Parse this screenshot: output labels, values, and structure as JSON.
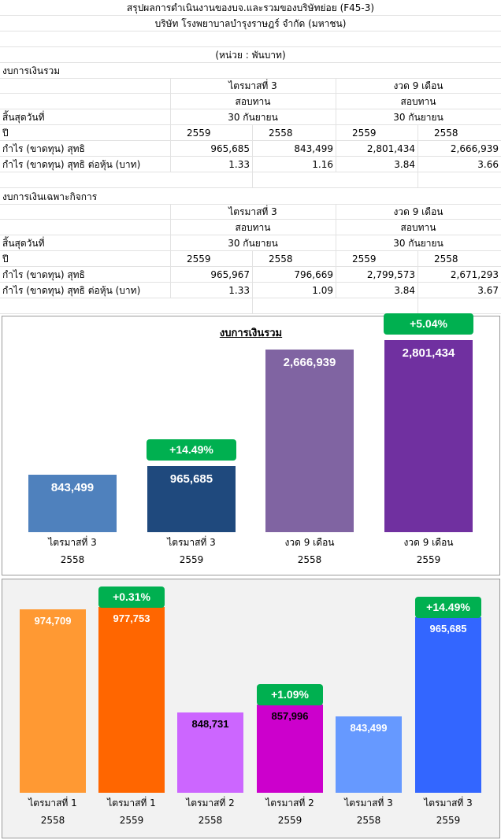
{
  "header": {
    "title": "สรุปผลการดำเนินงานของบจ.และรวมของบริษัทย่อย (F45-3)",
    "company": "บริษัท โรงพยาบาลบำรุงราษฎร์ จำกัด (มหาชน)",
    "unit": "(หน่วย : พันบาท)"
  },
  "tables": [
    {
      "title": "งบการเงินรวม",
      "period1": "ไตรมาสที่ 3",
      "period2": "งวด 9 เดือน",
      "audit1": "สอบทาน",
      "audit2": "สอบทาน",
      "end_label": "สิ้นสุดวันที่",
      "end1": "30 กันยายน",
      "end2": "30 กันยายน",
      "year_label": "ปี",
      "years": [
        "2559",
        "2558",
        "2559",
        "2558"
      ],
      "rows": [
        {
          "label": "กำไร (ขาดทุน) สุทธิ",
          "values": [
            "965,685",
            "843,499",
            "2,801,434",
            "2,666,939"
          ]
        },
        {
          "label": "กำไร (ขาดทุน) สุทธิ ต่อหุ้น (บาท)",
          "values": [
            "1.33",
            "1.16",
            "3.84",
            "3.66"
          ]
        }
      ]
    },
    {
      "title": "งบการเงินเฉพาะกิจการ",
      "period1": "ไตรมาสที่ 3",
      "period2": "งวด 9 เดือน",
      "audit1": "สอบทาน",
      "audit2": "สอบทาน",
      "end_label": "สิ้นสุดวันที่",
      "end1": "30 กันยายน",
      "end2": "30 กันยายน",
      "year_label": "ปี",
      "years": [
        "2559",
        "2558",
        "2559",
        "2558"
      ],
      "rows": [
        {
          "label": "กำไร (ขาดทุน) สุทธิ",
          "values": [
            "965,967",
            "796,669",
            "2,799,573",
            "2,671,293"
          ]
        },
        {
          "label": "กำไร (ขาดทุน) สุทธิ ต่อหุ้น (บาท)",
          "values": [
            "1.33",
            "1.09",
            "3.84",
            "3.67"
          ]
        }
      ]
    }
  ],
  "chart_data": [
    {
      "type": "bar",
      "title": "งบการเงินรวม",
      "ylim": [
        0,
        3000000
      ],
      "grid": false,
      "background": "#ffffff",
      "categories": [
        [
          "ไตรมาสที่ 3",
          "2558"
        ],
        [
          "ไตรมาสที่ 3",
          "2559"
        ],
        [
          "งวด 9 เดือน",
          "2558"
        ],
        [
          "งวด 9 เดือน",
          "2559"
        ]
      ],
      "values": [
        843499,
        965685,
        2666939,
        2801434
      ],
      "labels": [
        "843,499",
        "965,685",
        "2,666,939",
        "2,801,434"
      ],
      "colors": [
        "#4f81bd",
        "#1f497d",
        "#8064a2",
        "#7030a0"
      ],
      "label_colors": [
        "#ffffff",
        "#ffffff",
        "#ffffff",
        "#ffffff"
      ],
      "badges": [
        null,
        "+14.49%",
        null,
        "+5.04%"
      ]
    },
    {
      "type": "bar",
      "title": "",
      "ylim": [
        750000,
        1000000
      ],
      "grid": false,
      "background": "#f2f2f2",
      "categories": [
        [
          "ไตรมาสที่ 1",
          "2558"
        ],
        [
          "ไตรมาสที่ 1",
          "2559"
        ],
        [
          "ไตรมาสที่ 2",
          "2558"
        ],
        [
          "ไตรมาสที่ 2",
          "2559"
        ],
        [
          "ไตรมาสที่ 3",
          "2558"
        ],
        [
          "ไตรมาสที่ 3",
          "2559"
        ]
      ],
      "values": [
        974709,
        977753,
        848731,
        857996,
        843499,
        965685
      ],
      "labels": [
        "974,709",
        "977,753",
        "848,731",
        "857,996",
        "843,499",
        "965,685"
      ],
      "colors": [
        "#ff9933",
        "#ff6600",
        "#cc66ff",
        "#cc00cc",
        "#6699ff",
        "#3366ff"
      ],
      "label_colors": [
        "#ffffff",
        "#ffffff",
        "#000000",
        "#000000",
        "#ffffff",
        "#ffffff"
      ],
      "badges": [
        null,
        "+0.31%",
        null,
        "+1.09%",
        null,
        "+14.49%"
      ]
    }
  ]
}
